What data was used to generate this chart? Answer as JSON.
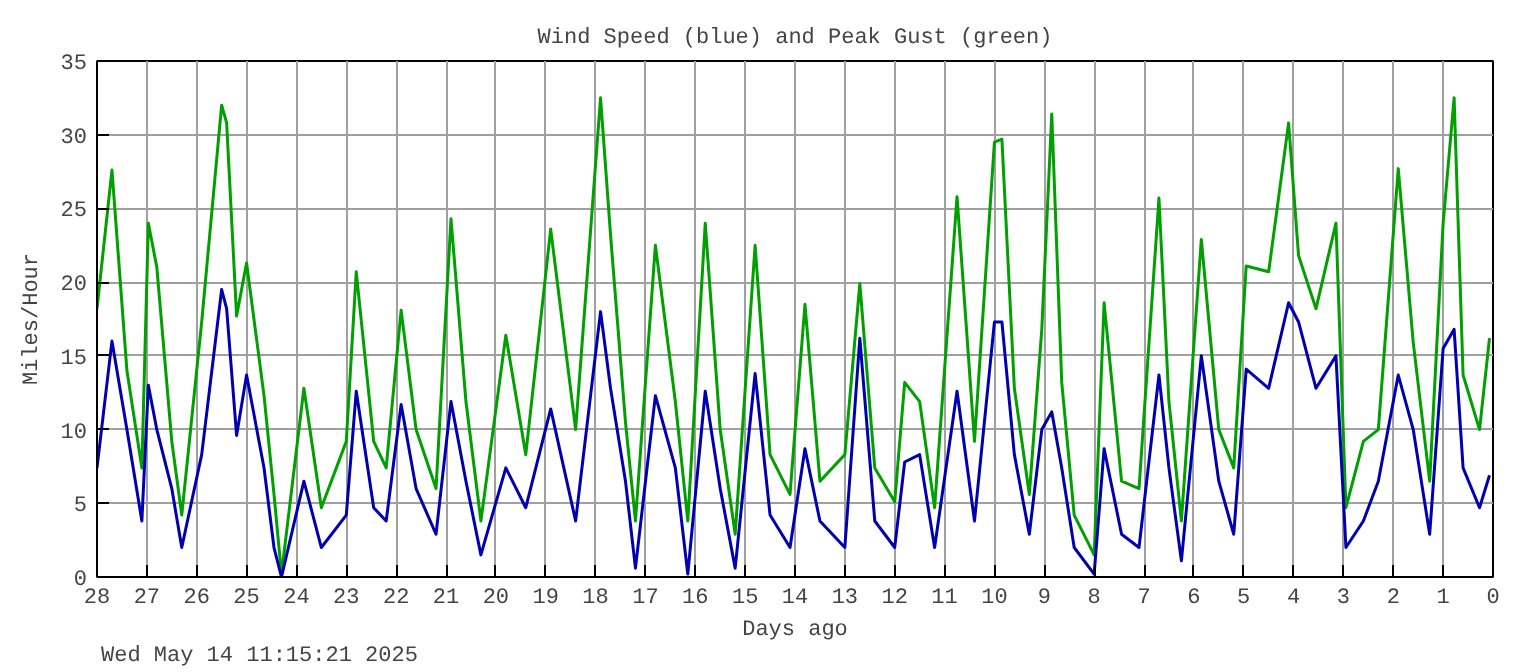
{
  "chart_data": {
    "type": "line",
    "title": "Wind Speed (blue) and Peak Gust (green)",
    "xlabel": "Days ago",
    "ylabel": "Miles/Hour",
    "annotations": [
      "Wed May 14 11:15:21 2025"
    ],
    "xlim": [
      28,
      0
    ],
    "xticks": [
      28,
      27,
      26,
      25,
      24,
      23,
      22,
      21,
      20,
      19,
      18,
      17,
      16,
      15,
      14,
      13,
      12,
      11,
      10,
      9,
      8,
      7,
      6,
      5,
      4,
      3,
      2,
      1,
      0
    ],
    "ylim": [
      0,
      35
    ],
    "yticks": [
      0,
      5,
      10,
      15,
      20,
      25,
      30,
      35
    ],
    "grid": true,
    "line_style": "solid",
    "marker": "none",
    "x": [
      28,
      27.7,
      27.4,
      27.1,
      26.97,
      26.8,
      26.5,
      26.3,
      25.9,
      25.5,
      25.4,
      25.2,
      25.0,
      24.65,
      24.45,
      24.3,
      23.85,
      23.5,
      23.0,
      22.8,
      22.45,
      22.2,
      21.9,
      21.6,
      21.2,
      20.9,
      20.6,
      20.3,
      19.8,
      19.4,
      18.9,
      18.4,
      17.9,
      17.7,
      17.4,
      17.2,
      16.8,
      16.4,
      16.15,
      15.8,
      15.5,
      15.2,
      14.8,
      14.5,
      14.1,
      13.8,
      13.5,
      13.0,
      12.7,
      12.4,
      12.0,
      11.8,
      11.5,
      11.2,
      10.75,
      10.4,
      10.0,
      9.85,
      9.6,
      9.3,
      9.05,
      8.85,
      8.65,
      8.4,
      8.0,
      7.8,
      7.45,
      7.1,
      6.7,
      6.5,
      6.25,
      5.85,
      5.5,
      5.2,
      4.95,
      4.5,
      4.1,
      3.9,
      3.55,
      3.15,
      2.95,
      2.6,
      2.3,
      1.9,
      1.6,
      1.27,
      1.0,
      0.78,
      0.6,
      0.27,
      0.07
    ],
    "series": [
      {
        "color": "#00a000",
        "values": [
          18.2,
          27.6,
          14,
          7.4,
          24,
          21,
          9.2,
          4.2,
          17.3,
          32,
          30.8,
          17.7,
          21.3,
          12.3,
          5.6,
          0.2,
          12.8,
          4.7,
          9.2,
          20.7,
          9.2,
          7.4,
          18.1,
          10,
          6,
          24.3,
          11.9,
          3.8,
          16.4,
          8.3,
          23.6,
          10,
          32.5,
          23.2,
          10.5,
          3.8,
          22.5,
          11.9,
          3.8,
          24,
          10,
          2.9,
          22.5,
          8.3,
          5.6,
          18.5,
          6.5,
          8.3,
          19.9,
          7.4,
          5.1,
          13.2,
          11.9,
          4.7,
          25.8,
          9.2,
          29.5,
          29.7,
          12.8,
          5.6,
          16.8,
          31.4,
          13.2,
          4.2,
          1.5,
          18.6,
          6.5,
          6,
          25.7,
          11.9,
          3.8,
          22.9,
          10,
          7.4,
          21.1,
          20.7,
          30.8,
          21.8,
          18.2,
          24,
          4.7,
          9.2,
          10,
          27.7,
          15.9,
          6.5,
          24,
          32.5,
          13.7,
          10,
          16.2
        ]
      },
      {
        "color": "#0000b0",
        "values": [
          7.4,
          16,
          10,
          3.8,
          13,
          10,
          6,
          2,
          8.3,
          19.5,
          18.2,
          9.6,
          13.7,
          7.4,
          2,
          0,
          6.5,
          2,
          4.2,
          12.6,
          4.7,
          3.8,
          11.7,
          6,
          2.9,
          11.9,
          6.5,
          1.5,
          7.4,
          4.7,
          11.4,
          3.8,
          18,
          12.8,
          6.5,
          0.6,
          12.3,
          7.4,
          0.2,
          12.6,
          6,
          0.6,
          13.8,
          4.2,
          2,
          8.7,
          3.8,
          2,
          16.2,
          3.8,
          2,
          7.8,
          8.3,
          2,
          12.6,
          3.8,
          17.3,
          17.3,
          8.3,
          2.9,
          10,
          11.2,
          7.4,
          2,
          0.2,
          8.7,
          2.9,
          2,
          13.7,
          7.4,
          1.1,
          15,
          6.5,
          2.9,
          14.1,
          12.8,
          18.6,
          17.3,
          12.8,
          15,
          2,
          3.8,
          6.5,
          13.7,
          10,
          2.9,
          15.5,
          16.8,
          7.4,
          4.7,
          6.9
        ]
      }
    ]
  }
}
